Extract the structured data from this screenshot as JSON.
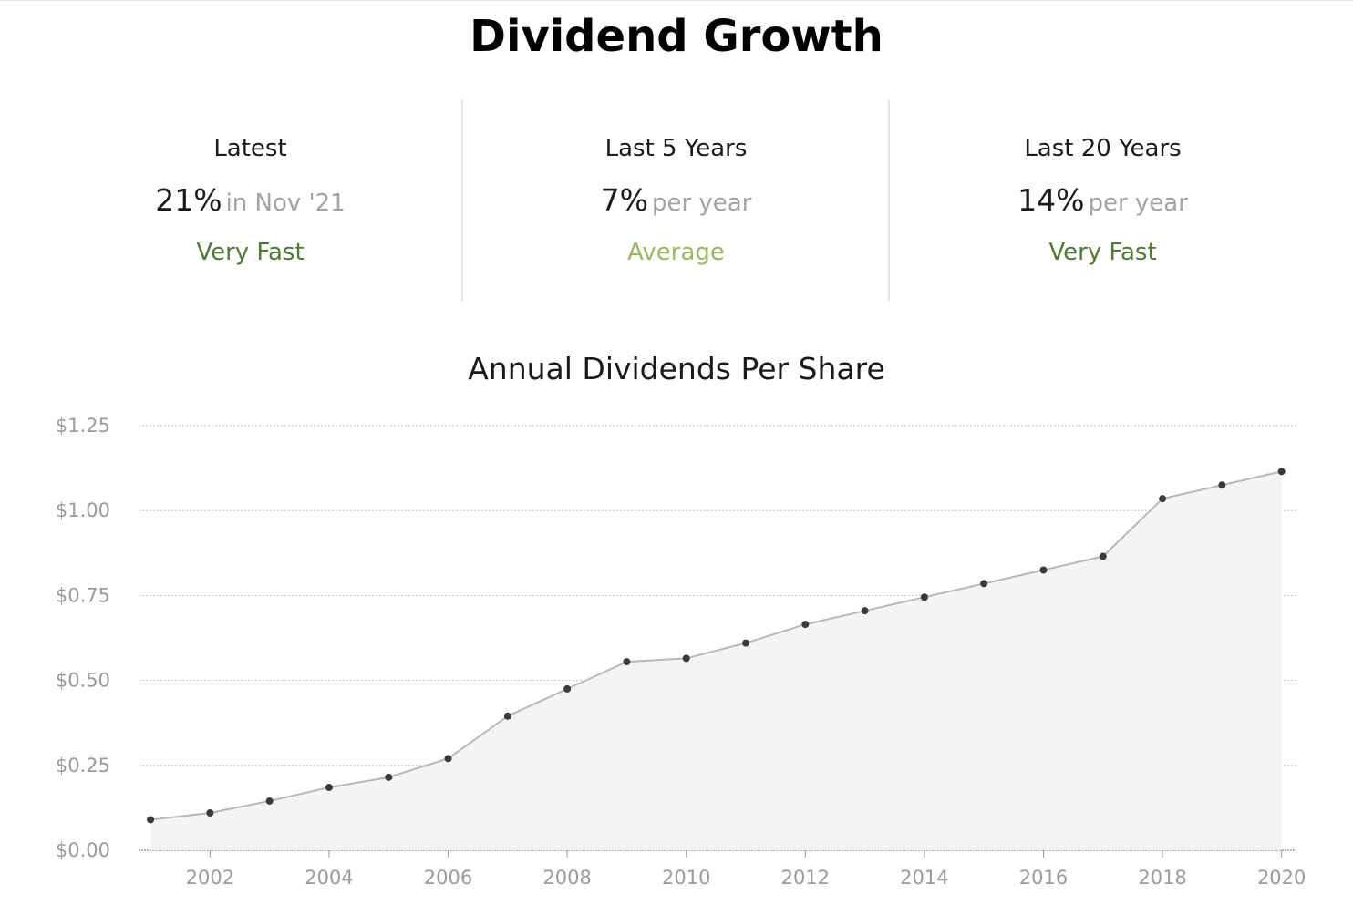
{
  "page": {
    "title": "Dividend Growth"
  },
  "stats": [
    {
      "label": "Latest",
      "value": "21%",
      "suffix": "in Nov '21",
      "rating": "Very Fast",
      "rating_color": "#4e7a34"
    },
    {
      "label": "Last 5 Years",
      "value": "7%",
      "suffix": "per year",
      "rating": "Average",
      "rating_color": "#98b862"
    },
    {
      "label": "Last 20 Years",
      "value": "14%",
      "suffix": "per year",
      "rating": "Very Fast",
      "rating_color": "#4e7a34"
    }
  ],
  "colors": {
    "line": "#b8b8b8",
    "area": "#f4f4f4",
    "point": "#3a3a3a",
    "grid": "#c4c4c4",
    "tick_text": "#9b9b9b"
  },
  "chart_data": {
    "type": "area",
    "title": "Annual Dividends Per Share",
    "xlabel": "",
    "ylabel": "",
    "x": [
      2001,
      2002,
      2003,
      2004,
      2005,
      2006,
      2007,
      2008,
      2009,
      2010,
      2011,
      2012,
      2013,
      2014,
      2015,
      2016,
      2017,
      2018,
      2019,
      2020
    ],
    "series": [
      {
        "values": [
          0.09,
          0.11,
          0.145,
          0.185,
          0.215,
          0.27,
          0.395,
          0.475,
          0.555,
          0.565,
          0.61,
          0.665,
          0.705,
          0.745,
          0.785,
          0.825,
          0.865,
          1.035,
          1.075,
          1.115
        ]
      }
    ],
    "xlim": [
      2000.8,
      2020.25
    ],
    "ylim": [
      0,
      1.25
    ],
    "y_ticks": [
      {
        "value": 0,
        "label": "$0.00"
      },
      {
        "value": 0.25,
        "label": "$0.25"
      },
      {
        "value": 0.5,
        "label": "$0.50"
      },
      {
        "value": 0.75,
        "label": "$0.75"
      },
      {
        "value": 1.0,
        "label": "$1.00"
      },
      {
        "value": 1.25,
        "label": "$1.25"
      }
    ],
    "x_ticks": [
      {
        "value": 2002,
        "label": "2002"
      },
      {
        "value": 2004,
        "label": "2004"
      },
      {
        "value": 2006,
        "label": "2006"
      },
      {
        "value": 2008,
        "label": "2008"
      },
      {
        "value": 2010,
        "label": "2010"
      },
      {
        "value": 2012,
        "label": "2012"
      },
      {
        "value": 2014,
        "label": "2014"
      },
      {
        "value": 2016,
        "label": "2016"
      },
      {
        "value": 2018,
        "label": "2018"
      },
      {
        "value": 2020,
        "label": "2020"
      }
    ],
    "grid": true,
    "legend": "none"
  }
}
